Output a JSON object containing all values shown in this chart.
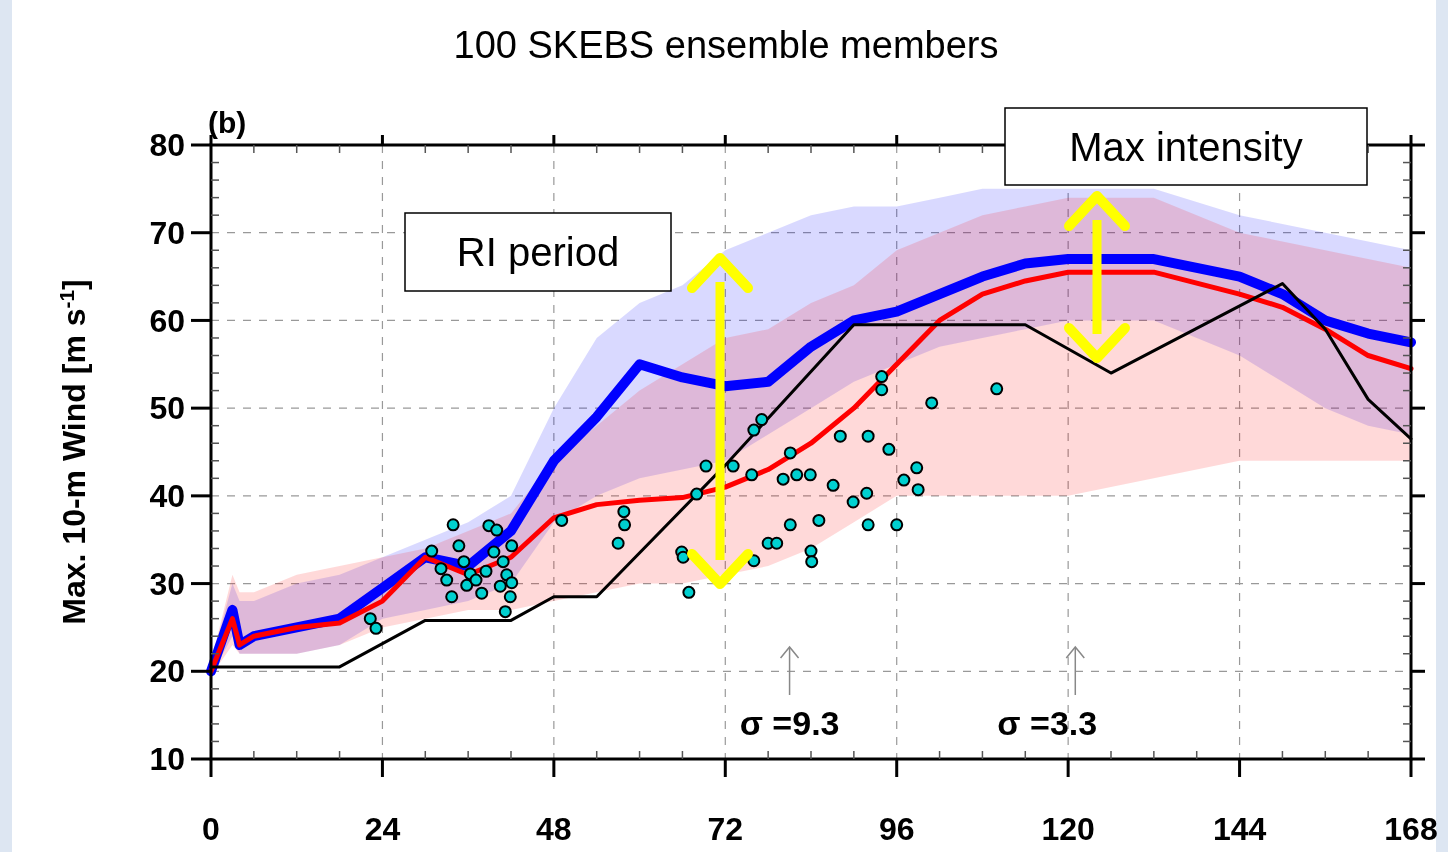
{
  "chart_data": {
    "type": "line",
    "title": "100 SKEBS ensemble members",
    "ylabel": "Max. 10-m Wind [m s$^{-1}$]",
    "xlim": [
      0,
      168
    ],
    "xticks": [
      0,
      24,
      48,
      72,
      96,
      120,
      144,
      168
    ],
    "ylim": [
      10,
      80
    ],
    "yticks": [
      10,
      20,
      30,
      40,
      50,
      60,
      70,
      80
    ],
    "grid": true,
    "annotations": [
      "(b)",
      "RI period",
      "Max intensity",
      "σ =9.3",
      "σ =3.3"
    ],
    "series": [
      {
        "color": "#0000ff",
        "marker": "none",
        "x": [
          0,
          3,
          4,
          6,
          12,
          18,
          24,
          30,
          36,
          42,
          48,
          54,
          60,
          66,
          72,
          78,
          84,
          90,
          96,
          102,
          108,
          114,
          120,
          132,
          144,
          150,
          156,
          162,
          168
        ],
        "values": [
          20,
          27,
          23,
          24,
          25,
          26,
          29.5,
          33,
          32,
          36,
          44,
          49,
          55,
          53.5,
          52.5,
          53,
          57,
          60,
          61,
          63,
          65,
          66.5,
          67,
          67,
          65,
          63,
          60,
          58.5,
          57.5
        ],
        "lower": [
          19.5,
          24,
          22,
          22,
          22,
          23,
          26,
          27,
          28,
          30,
          37,
          40,
          42,
          43,
          44,
          47,
          50,
          53,
          55,
          57,
          58,
          59,
          60,
          60,
          56,
          53,
          50,
          48,
          47
        ],
        "upper": [
          21,
          30,
          28,
          28,
          30,
          31,
          33,
          35,
          37,
          40,
          50,
          58,
          62,
          64,
          68,
          70,
          72,
          73,
          73,
          74,
          75,
          75,
          75,
          75,
          72,
          71,
          70,
          69,
          68
        ]
      },
      {
        "color": "#ff0000",
        "marker": "none",
        "x": [
          0,
          3,
          4,
          6,
          12,
          18,
          24,
          30,
          36,
          42,
          48,
          54,
          60,
          66,
          72,
          78,
          84,
          90,
          96,
          102,
          108,
          114,
          120,
          132,
          144,
          150,
          156,
          162,
          168
        ],
        "values": [
          20,
          26,
          23,
          24,
          25,
          25.5,
          28,
          33,
          31,
          33,
          37.5,
          39,
          39.5,
          39.8,
          41,
          43,
          46,
          50,
          55,
          60,
          63,
          64.5,
          65.5,
          65.5,
          63,
          61.5,
          59,
          56,
          54.5
        ],
        "lower": [
          19.5,
          23,
          22,
          22,
          22,
          23,
          25,
          26,
          27,
          27,
          28,
          29,
          30,
          30,
          31,
          32,
          34,
          37,
          40,
          40,
          40,
          40,
          40,
          42,
          44,
          44,
          44,
          44,
          44
        ],
        "upper": [
          21,
          31,
          29,
          29,
          31,
          32,
          33,
          34,
          36,
          38,
          44,
          48,
          52,
          55,
          58,
          59,
          62,
          64,
          68,
          70,
          72,
          73,
          74,
          74,
          70,
          69,
          68,
          67,
          66
        ]
      },
      {
        "color": "#000000",
        "marker": "none",
        "x": [
          0,
          18,
          30,
          42,
          48,
          54,
          72,
          90,
          114,
          126,
          150,
          156,
          162,
          168
        ],
        "values": [
          20.5,
          20.5,
          25.8,
          25.8,
          28.5,
          28.5,
          43.5,
          59.5,
          59.5,
          54,
          64.2,
          59,
          51,
          46.5
        ]
      },
      {
        "type": "scatter",
        "color": "#00d0d0",
        "marker": "circle",
        "x": [
          22.3,
          23.1,
          30.9,
          33.9,
          32.2,
          33.0,
          33.7,
          34.7,
          35.4,
          35.8,
          36.3,
          37.1,
          37.9,
          38.5,
          38.9,
          39.6,
          40.0,
          40.5,
          40.9,
          41.4,
          41.9,
          42.1,
          42.1,
          41.2,
          49.1,
          57.0,
          57.8,
          57.9,
          65.9,
          66.1,
          66.9,
          68.0,
          69.3,
          73.1,
          75.7,
          76.0,
          77.1,
          76.0,
          78.0,
          79.2,
          80.1,
          81.1,
          81.1,
          82.0,
          83.9,
          84.0,
          84.1,
          85.1,
          87.1,
          88.1,
          89.9,
          91.8,
          92.0,
          92.0,
          93.9,
          93.9,
          94.9,
          96.0,
          97.0,
          98.8,
          99.0,
          100.9,
          110.0
        ],
        "values": [
          26.0,
          24.9,
          33.7,
          36.7,
          31.7,
          30.4,
          28.5,
          34.3,
          32.5,
          29.8,
          31.1,
          30.4,
          28.9,
          31.4,
          36.6,
          33.6,
          36.1,
          29.7,
          32.5,
          31.0,
          28.5,
          34.3,
          30.1,
          26.8,
          37.2,
          34.6,
          38.2,
          36.7,
          33.6,
          33.0,
          29.0,
          40.2,
          43.4,
          43.4,
          42.4,
          47.5,
          48.7,
          32.6,
          34.6,
          34.6,
          41.9,
          44.9,
          36.7,
          42.4,
          42.4,
          33.7,
          32.5,
          37.2,
          41.2,
          46.8,
          39.3,
          40.3,
          46.8,
          36.7,
          53.6,
          52.1,
          45.3,
          36.7,
          41.8,
          43.2,
          40.7,
          50.6,
          52.2
        ]
      }
    ]
  }
}
